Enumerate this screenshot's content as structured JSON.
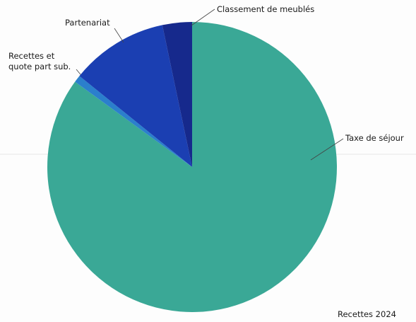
{
  "chart_data": {
    "type": "pie",
    "title": "Recettes 2024",
    "categories": [
      "Taxe de séjour",
      "Recettes et quote part sub.",
      "Partenariat",
      "Classement de meublés"
    ],
    "values": [
      85,
      0.8,
      10.9,
      3.3
    ],
    "colors": [
      "#3aa896",
      "#2b7fcc",
      "#1b3fb2",
      "#16298c"
    ]
  }
}
